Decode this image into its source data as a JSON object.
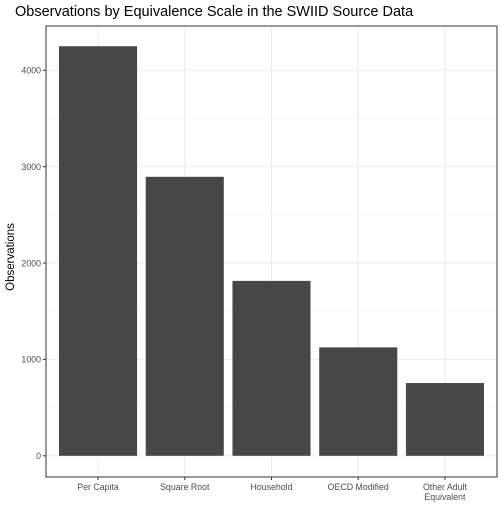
{
  "chart_data": {
    "type": "bar",
    "title": "Observations by Equivalence Scale in the SWIID Source Data",
    "xlabel": "",
    "ylabel": "Observations",
    "categories": [
      [
        "Per Capita"
      ],
      [
        "Square Root"
      ],
      [
        "Household"
      ],
      [
        "OECD Modified"
      ],
      [
        "Other Adult",
        "Equivalent"
      ]
    ],
    "values": [
      4250,
      2895,
      1815,
      1125,
      755
    ],
    "ylim": [
      -220,
      4460
    ],
    "yticks": [
      0,
      1000,
      2000,
      3000,
      4000
    ],
    "grid": true,
    "legend": "none",
    "colors": {
      "bar": "#474747",
      "panel_border": "#333333",
      "grid_major": "#ebebeb",
      "grid_minor": "#f5f5f5",
      "axis_text": "#4d4d4d",
      "title": "#000000"
    }
  }
}
